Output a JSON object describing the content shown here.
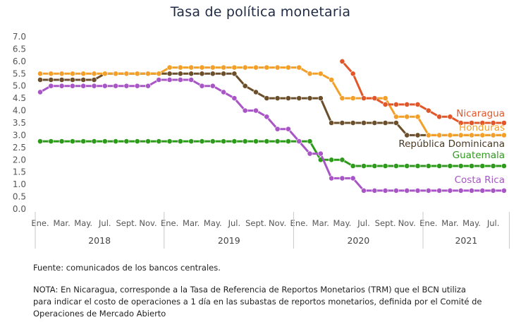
{
  "title": "Tasa de política monetaria",
  "source": "Fuente: comunicados de los bancos centrales.",
  "note": "NOTA: En Nicaragua, corresponde a la Tasa de Referencia de Reportos Monetarios (TRM) que el BCN utiliza para indicar el costo de operaciones a 1 día en las subastas de reportos monetarios, definida por el Comité de Operaciones de Mercado Abierto",
  "chart_data": {
    "type": "line",
    "ylim": [
      0.0,
      7.0
    ],
    "yticks": [
      "0.0",
      "0.5",
      "1.0",
      "1.5",
      "2.0",
      "2.5",
      "3.0",
      "3.5",
      "4.0",
      "4.5",
      "5.0",
      "5.5",
      "6.0",
      "6.5",
      "7.0"
    ],
    "x_months": [
      "2018-01",
      "2018-02",
      "2018-03",
      "2018-04",
      "2018-05",
      "2018-06",
      "2018-07",
      "2018-08",
      "2018-09",
      "2018-10",
      "2018-11",
      "2018-12",
      "2019-01",
      "2019-02",
      "2019-03",
      "2019-04",
      "2019-05",
      "2019-06",
      "2019-07",
      "2019-08",
      "2019-09",
      "2019-10",
      "2019-11",
      "2019-12",
      "2020-01",
      "2020-02",
      "2020-03",
      "2020-04",
      "2020-05",
      "2020-06",
      "2020-07",
      "2020-08",
      "2020-09",
      "2020-10",
      "2020-11",
      "2020-12",
      "2021-01",
      "2021-02",
      "2021-03",
      "2021-04",
      "2021-05",
      "2021-06",
      "2021-07",
      "2021-08"
    ],
    "x_tick_labels": [
      {
        "label": "Ene.",
        "index": 0
      },
      {
        "label": "Mar.",
        "index": 2
      },
      {
        "label": "May.",
        "index": 4
      },
      {
        "label": "Jul.",
        "index": 6
      },
      {
        "label": "Sept.",
        "index": 8
      },
      {
        "label": "Nov.",
        "index": 10
      },
      {
        "label": "Ene.",
        "index": 12
      },
      {
        "label": "Mar.",
        "index": 14
      },
      {
        "label": "May.",
        "index": 16
      },
      {
        "label": "Jul.",
        "index": 18
      },
      {
        "label": "Sept.",
        "index": 20
      },
      {
        "label": "Nov.",
        "index": 22
      },
      {
        "label": "Ene.",
        "index": 24
      },
      {
        "label": "Mar.",
        "index": 26
      },
      {
        "label": "May.",
        "index": 28
      },
      {
        "label": "Jul.",
        "index": 30
      },
      {
        "label": "Sept.",
        "index": 32
      },
      {
        "label": "Nov.",
        "index": 34
      },
      {
        "label": "Ene.",
        "index": 36
      },
      {
        "label": "Mar.",
        "index": 38
      },
      {
        "label": "May.",
        "index": 40
      },
      {
        "label": "Jul.",
        "index": 42
      }
    ],
    "years": [
      {
        "label": "2018",
        "start": 0,
        "end": 11
      },
      {
        "label": "2019",
        "start": 12,
        "end": 23
      },
      {
        "label": "2020",
        "start": 24,
        "end": 35
      },
      {
        "label": "2021",
        "start": 36,
        "end": 43
      }
    ],
    "series": [
      {
        "name": "Guatemala",
        "color": "#2e9a1c",
        "values": [
          2.75,
          2.75,
          2.75,
          2.75,
          2.75,
          2.75,
          2.75,
          2.75,
          2.75,
          2.75,
          2.75,
          2.75,
          2.75,
          2.75,
          2.75,
          2.75,
          2.75,
          2.75,
          2.75,
          2.75,
          2.75,
          2.75,
          2.75,
          2.75,
          2.75,
          2.75,
          2.0,
          2.0,
          2.0,
          1.75,
          1.75,
          1.75,
          1.75,
          1.75,
          1.75,
          1.75,
          1.75,
          1.75,
          1.75,
          1.75,
          1.75,
          1.75,
          1.75,
          1.75
        ]
      },
      {
        "name": "Costa Rica",
        "color": "#a855c6",
        "values": [
          4.75,
          5.0,
          5.0,
          5.0,
          5.0,
          5.0,
          5.0,
          5.0,
          5.0,
          5.0,
          5.0,
          5.25,
          5.25,
          5.25,
          5.25,
          5.0,
          5.0,
          4.75,
          4.5,
          4.0,
          4.0,
          3.75,
          3.25,
          3.25,
          2.75,
          2.25,
          2.25,
          1.25,
          1.25,
          1.25,
          0.75,
          0.75,
          0.75,
          0.75,
          0.75,
          0.75,
          0.75,
          0.75,
          0.75,
          0.75,
          0.75,
          0.75,
          0.75,
          0.75
        ]
      },
      {
        "name": "República Dominicana",
        "color": "#6b4e2a",
        "values": [
          5.25,
          5.25,
          5.25,
          5.25,
          5.25,
          5.25,
          5.5,
          5.5,
          5.5,
          5.5,
          5.5,
          5.5,
          5.5,
          5.5,
          5.5,
          5.5,
          5.5,
          5.5,
          5.5,
          5.0,
          4.75,
          4.5,
          4.5,
          4.5,
          4.5,
          4.5,
          4.5,
          3.5,
          3.5,
          3.5,
          3.5,
          3.5,
          3.5,
          3.5,
          3.0,
          3.0,
          3.0,
          3.0,
          3.0,
          3.0,
          3.0,
          3.0,
          3.0,
          3.0
        ]
      },
      {
        "name": "Honduras",
        "color": "#f2a02a",
        "values": [
          5.5,
          5.5,
          5.5,
          5.5,
          5.5,
          5.5,
          5.5,
          5.5,
          5.5,
          5.5,
          5.5,
          5.5,
          5.75,
          5.75,
          5.75,
          5.75,
          5.75,
          5.75,
          5.75,
          5.75,
          5.75,
          5.75,
          5.75,
          5.75,
          5.75,
          5.5,
          5.5,
          5.25,
          4.5,
          4.5,
          4.5,
          4.5,
          4.5,
          3.75,
          3.75,
          3.75,
          3.0,
          3.0,
          3.0,
          3.0,
          3.0,
          3.0,
          3.0,
          3.0
        ]
      },
      {
        "name": "Nicaragua",
        "color": "#e1572a",
        "values": [
          null,
          null,
          null,
          null,
          null,
          null,
          null,
          null,
          null,
          null,
          null,
          null,
          null,
          null,
          null,
          null,
          null,
          null,
          null,
          null,
          null,
          null,
          null,
          null,
          null,
          null,
          null,
          null,
          6.0,
          5.5,
          4.5,
          4.5,
          4.25,
          4.25,
          4.25,
          4.25,
          4.0,
          3.75,
          3.75,
          3.5,
          3.5,
          3.5,
          3.5,
          3.5
        ]
      }
    ]
  }
}
